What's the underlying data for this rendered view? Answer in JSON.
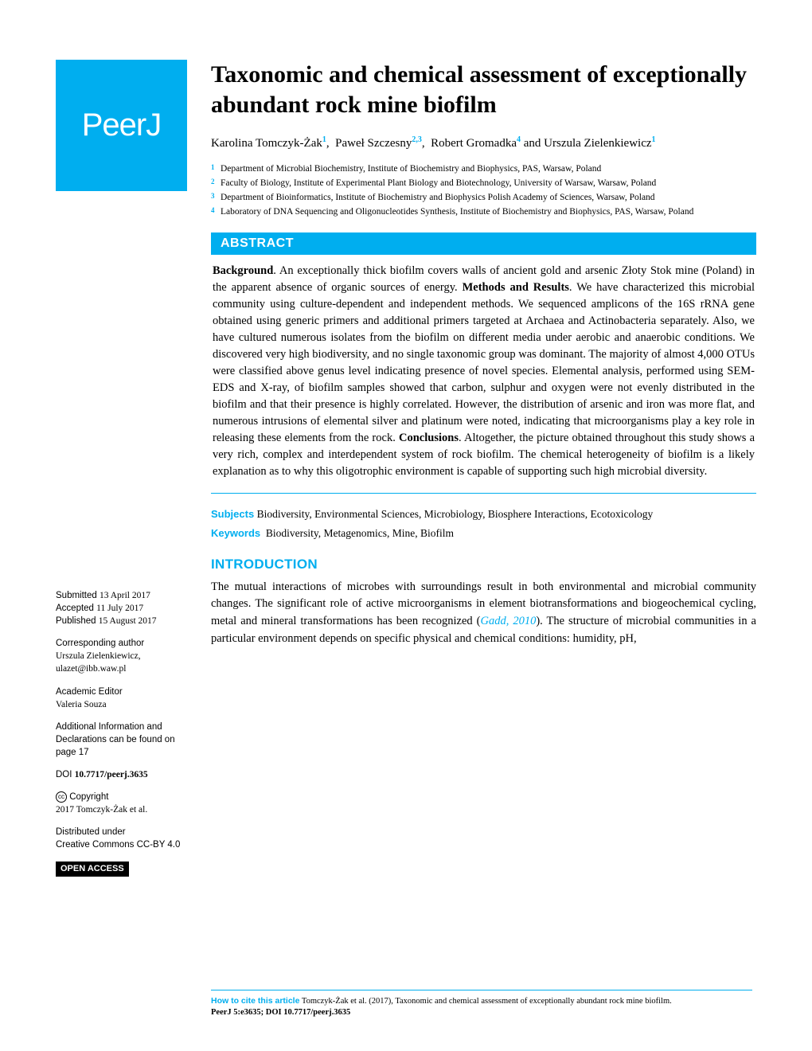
{
  "logo": {
    "text": "PeerJ"
  },
  "title": "Taxonomic and chemical assessment of exceptionally abundant rock mine biofilm",
  "authors": [
    {
      "name": "Karolina Tomczyk-Żak",
      "affil": "1"
    },
    {
      "name": "Paweł Szczesny",
      "affil": "2,3"
    },
    {
      "name": "Robert Gromadka",
      "affil": "4"
    },
    {
      "name": "Urszula Zielenkiewicz",
      "affil": "1"
    }
  ],
  "and_word": "and",
  "affiliations": [
    {
      "num": "1",
      "text": "Department of Microbial Biochemistry, Institute of Biochemistry and Biophysics, PAS, Warsaw, Poland"
    },
    {
      "num": "2",
      "text": "Faculty of Biology, Institute of Experimental Plant Biology and Biotechnology, University of Warsaw, Warsaw, Poland"
    },
    {
      "num": "3",
      "text": "Department of Bioinformatics, Institute of Biochemistry and Biophysics Polish Academy of Sciences, Warsaw, Poland"
    },
    {
      "num": "4",
      "text": "Laboratory of DNA Sequencing and Oligonucleotides Synthesis, Institute of Biochemistry and Biophysics, PAS, Warsaw, Poland"
    }
  ],
  "abstract": {
    "heading": "ABSTRACT",
    "background_label": "Background",
    "background_text": ". An exceptionally thick biofilm covers walls of ancient gold and arsenic Złoty Stok mine (Poland) in the apparent absence of organic sources of energy.",
    "methods_label": "Methods and Results",
    "methods_text": ". We have characterized this microbial community using culture-dependent and independent methods. We sequenced amplicons of the 16S rRNA gene obtained using generic primers and additional primers targeted at Archaea and Actinobacteria separately. Also, we have cultured numerous isolates from the biofilm on different media under aerobic and anaerobic conditions. We discovered very high biodiversity, and no single taxonomic group was dominant. The majority of almost 4,000 OTUs were classified above genus level indicating presence of novel species. Elemental analysis, performed using SEM-EDS and X-ray, of biofilm samples showed that carbon, sulphur and oxygen were not evenly distributed in the biofilm and that their presence is highly correlated. However, the distribution of arsenic and iron was more flat, and numerous intrusions of elemental silver and platinum were noted, indicating that microorganisms play a key role in releasing these elements from the rock.",
    "conclusions_label": "Conclusions",
    "conclusions_text": ". Altogether, the picture obtained throughout this study shows a very rich, complex and interdependent system of rock biofilm. The chemical heterogeneity of biofilm is a likely explanation as to why this oligotrophic environment is capable of supporting such high microbial diversity."
  },
  "subjects": {
    "label": "Subjects",
    "text": "Biodiversity, Environmental Sciences, Microbiology, Biosphere Interactions, Ecotoxicology"
  },
  "keywords": {
    "label": "Keywords",
    "text": "Biodiversity, Metagenomics, Mine, Biofilm"
  },
  "introduction": {
    "heading": "INTRODUCTION",
    "text_pre": "The mutual interactions of microbes with surroundings result in both environmental and microbial community changes. The significant role of active microorganisms in element biotransformations and biogeochemical cycling, metal and mineral transformations has been recognized (",
    "cite": "Gadd, 2010",
    "text_post": "). The structure of microbial communities in a particular environment depends on specific physical and chemical conditions: humidity, pH,"
  },
  "sidebar": {
    "submitted_label": "Submitted",
    "submitted": "13 April 2017",
    "accepted_label": "Accepted",
    "accepted": "11 July 2017",
    "published_label": "Published",
    "published": "15 August 2017",
    "corresponding_label": "Corresponding author",
    "corresponding_name": "Urszula Zielenkiewicz,",
    "corresponding_email": "ulazet@ibb.waw.pl",
    "editor_label": "Academic Editor",
    "editor": "Valeria Souza",
    "additional": "Additional Information and Declarations can be found on page 17",
    "doi_label": "DOI",
    "doi": "10.7717/peerj.3635",
    "copyright_label": "Copyright",
    "copyright": "2017 Tomczyk-Żak et al.",
    "distributed_label": "Distributed under",
    "license": "Creative Commons CC-BY 4.0",
    "open_access": "OPEN ACCESS"
  },
  "footer": {
    "label": "How to cite this article",
    "text": "Tomczyk-Żak et al. (2017), Taxonomic and chemical assessment of exceptionally abundant rock mine biofilm.",
    "journal": "PeerJ 5:e3635; DOI 10.7717/peerj.3635"
  },
  "colors": {
    "brand": "#00aeef",
    "text": "#000000",
    "background": "#ffffff"
  }
}
